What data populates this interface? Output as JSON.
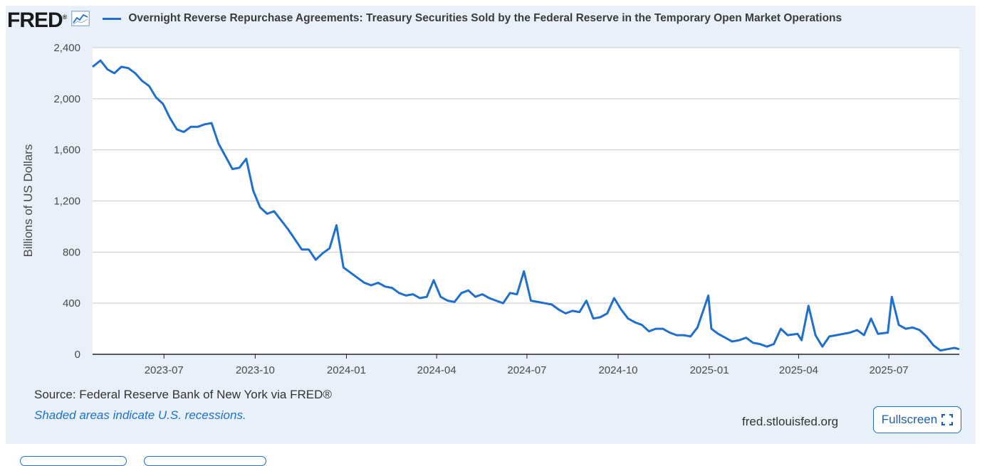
{
  "header": {
    "logo_text": "FRED",
    "logo_icon": "trend-graph-icon",
    "series_title": "Overnight Reverse Repurchase Agreements: Treasury Securities Sold by the Federal Reserve in the Temporary Open Market Operations"
  },
  "footer": {
    "source": "Source: Federal Reserve Bank of New York via FRED®",
    "recessions_note": "Shaded areas indicate U.S. recessions.",
    "site": "fred.stlouisfed.org",
    "fullscreen_label": "Fullscreen",
    "fullscreen_icon": "expand-icon"
  },
  "colors": {
    "line": "#1f6fcc",
    "panel": "#e8f1fa",
    "grid": "#c8c8c8"
  },
  "chart_data": {
    "type": "line",
    "title": "Overnight Reverse Repurchase Agreements: Treasury Securities Sold by the Federal Reserve in the Temporary Open Market Operations",
    "xlabel": "",
    "ylabel": "Billions of US Dollars",
    "ylim": [
      0,
      2400
    ],
    "xlim": [
      "2023-04-20",
      "2025-09-10"
    ],
    "yticks": [
      "0",
      "400",
      "800",
      "1,200",
      "1,600",
      "2,000",
      "2,400"
    ],
    "xticks": [
      "2023-07",
      "2023-10",
      "2024-01",
      "2024-04",
      "2024-07",
      "2024-10",
      "2025-01",
      "2025-04",
      "2025-07"
    ],
    "grid": true,
    "series": [
      {
        "name": "",
        "x": [
          "2023-04-20",
          "2023-04-28",
          "2023-05-05",
          "2023-05-12",
          "2023-05-19",
          "2023-05-26",
          "2023-06-02",
          "2023-06-09",
          "2023-06-16",
          "2023-06-23",
          "2023-06-30",
          "2023-07-07",
          "2023-07-14",
          "2023-07-21",
          "2023-07-28",
          "2023-08-04",
          "2023-08-11",
          "2023-08-18",
          "2023-08-25",
          "2023-09-01",
          "2023-09-08",
          "2023-09-15",
          "2023-09-22",
          "2023-09-29",
          "2023-10-06",
          "2023-10-13",
          "2023-10-20",
          "2023-10-27",
          "2023-11-03",
          "2023-11-10",
          "2023-11-17",
          "2023-11-24",
          "2023-12-01",
          "2023-12-08",
          "2023-12-15",
          "2023-12-22",
          "2023-12-29",
          "2024-01-05",
          "2024-01-12",
          "2024-01-19",
          "2024-01-26",
          "2024-02-02",
          "2024-02-09",
          "2024-02-16",
          "2024-02-23",
          "2024-03-01",
          "2024-03-08",
          "2024-03-15",
          "2024-03-22",
          "2024-03-29",
          "2024-04-05",
          "2024-04-12",
          "2024-04-19",
          "2024-04-26",
          "2024-05-03",
          "2024-05-10",
          "2024-05-17",
          "2024-05-24",
          "2024-05-31",
          "2024-06-07",
          "2024-06-14",
          "2024-06-21",
          "2024-06-28",
          "2024-07-05",
          "2024-07-12",
          "2024-07-19",
          "2024-07-26",
          "2024-08-02",
          "2024-08-09",
          "2024-08-16",
          "2024-08-23",
          "2024-08-30",
          "2024-09-06",
          "2024-09-13",
          "2024-09-20",
          "2024-09-27",
          "2024-10-04",
          "2024-10-11",
          "2024-10-18",
          "2024-10-25",
          "2024-11-01",
          "2024-11-08",
          "2024-11-15",
          "2024-11-22",
          "2024-11-29",
          "2024-12-06",
          "2024-12-13",
          "2024-12-20",
          "2024-12-31",
          "2025-01-03",
          "2025-01-10",
          "2025-01-17",
          "2025-01-24",
          "2025-01-31",
          "2025-02-07",
          "2025-02-14",
          "2025-02-21",
          "2025-02-28",
          "2025-03-07",
          "2025-03-14",
          "2025-03-21",
          "2025-03-31",
          "2025-04-04",
          "2025-04-11",
          "2025-04-18",
          "2025-04-25",
          "2025-05-02",
          "2025-05-09",
          "2025-05-16",
          "2025-05-23",
          "2025-05-30",
          "2025-06-06",
          "2025-06-13",
          "2025-06-20",
          "2025-06-30",
          "2025-07-04",
          "2025-07-11",
          "2025-07-18",
          "2025-07-25",
          "2025-08-01",
          "2025-08-08",
          "2025-08-15",
          "2025-08-22",
          "2025-08-29",
          "2025-09-05",
          "2025-09-10"
        ],
        "values": [
          2250,
          2300,
          2230,
          2200,
          2250,
          2240,
          2200,
          2140,
          2100,
          2010,
          1960,
          1850,
          1760,
          1740,
          1780,
          1780,
          1800,
          1810,
          1650,
          1550,
          1450,
          1460,
          1530,
          1280,
          1150,
          1100,
          1120,
          1050,
          980,
          900,
          820,
          820,
          740,
          790,
          830,
          1010,
          680,
          640,
          600,
          560,
          540,
          560,
          530,
          520,
          480,
          460,
          470,
          440,
          450,
          580,
          450,
          420,
          410,
          480,
          500,
          450,
          470,
          440,
          420,
          400,
          480,
          470,
          650,
          420,
          410,
          400,
          390,
          350,
          320,
          340,
          330,
          420,
          280,
          290,
          320,
          440,
          350,
          280,
          250,
          230,
          180,
          200,
          200,
          170,
          150,
          150,
          140,
          210,
          460,
          200,
          160,
          130,
          100,
          110,
          130,
          90,
          80,
          60,
          80,
          200,
          150,
          160,
          110,
          380,
          150,
          60,
          140,
          150,
          160,
          170,
          190,
          150,
          280,
          160,
          170,
          450,
          230,
          200,
          210,
          190,
          140,
          70,
          30,
          40,
          50,
          40
        ]
      }
    ]
  }
}
